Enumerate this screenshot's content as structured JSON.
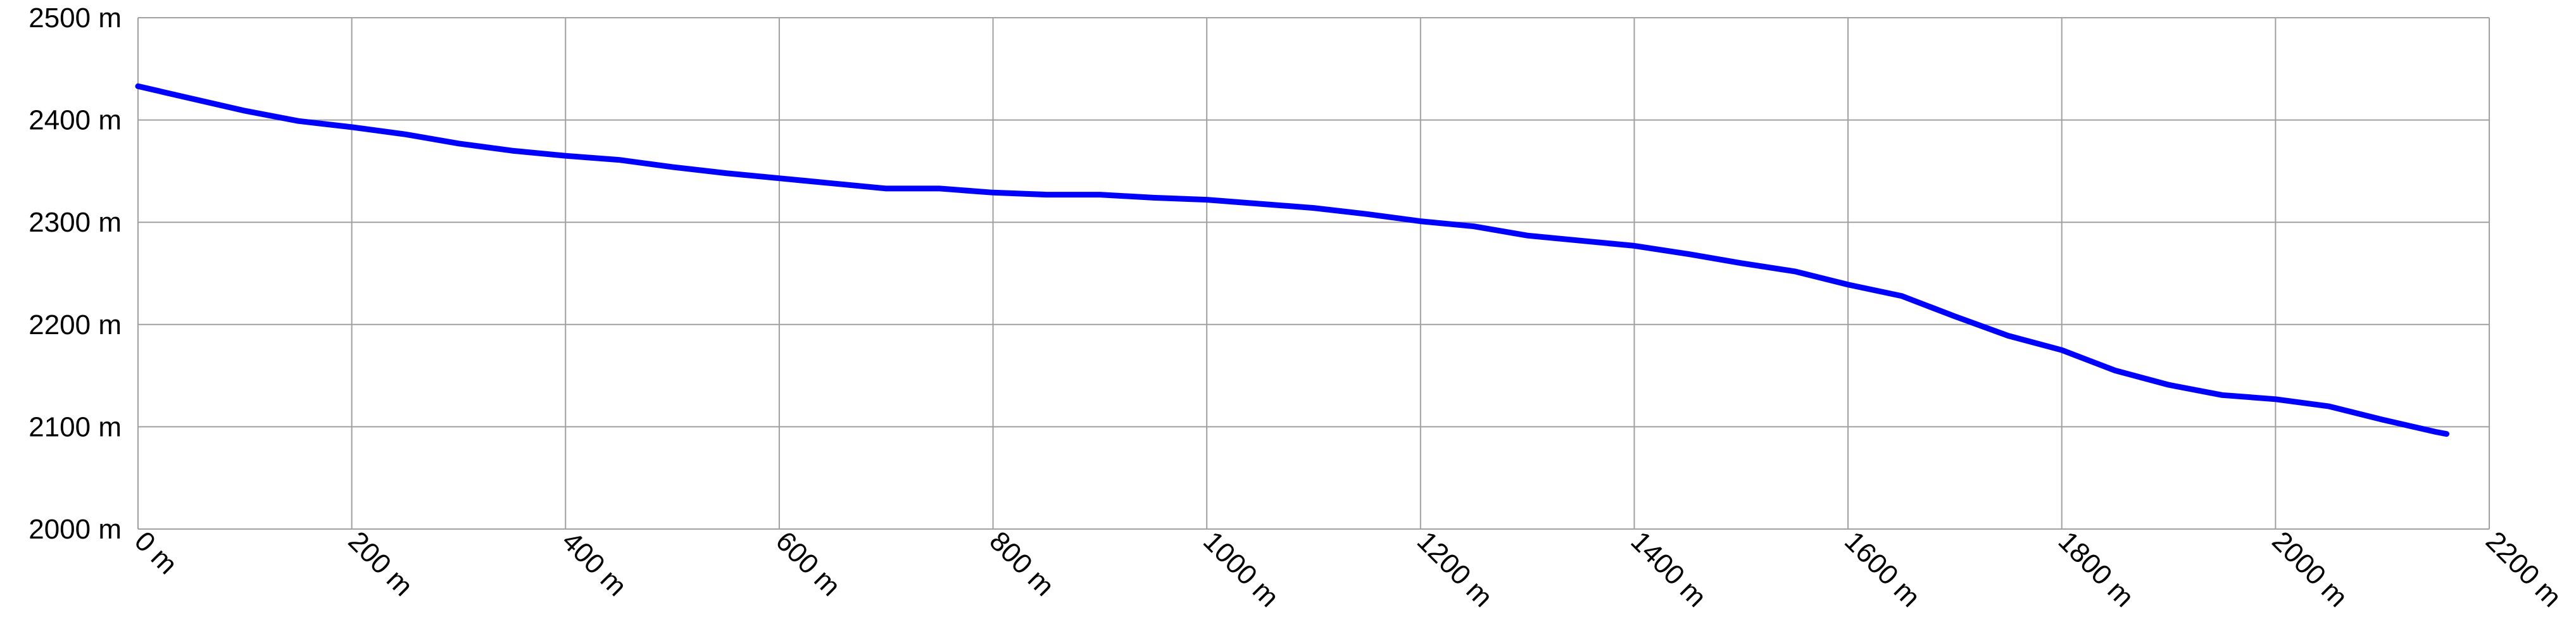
{
  "chart_data": {
    "type": "line",
    "x": [
      0,
      50,
      100,
      150,
      200,
      250,
      300,
      350,
      400,
      450,
      500,
      550,
      600,
      650,
      700,
      750,
      800,
      850,
      900,
      950,
      1000,
      1050,
      1100,
      1150,
      1200,
      1250,
      1300,
      1350,
      1400,
      1450,
      1500,
      1550,
      1600,
      1650,
      1700,
      1750,
      1800,
      1850,
      1900,
      1950,
      2000,
      2050,
      2100,
      2150,
      2160
    ],
    "series": [
      {
        "color": "#0000ff",
        "values": [
          2433,
          2421,
          2409,
          2399,
          2393,
          2386,
          2377,
          2370,
          2365,
          2361,
          2354,
          2348,
          2343,
          2338,
          2333,
          2333,
          2329,
          2327,
          2327,
          2324,
          2322,
          2318,
          2314,
          2308,
          2301,
          2296,
          2287,
          2282,
          2277,
          2269,
          2260,
          2252,
          2239,
          2228,
          2208,
          2189,
          2175,
          2155,
          2141,
          2131,
          2127,
          2120,
          2107,
          2095,
          2093
        ]
      }
    ],
    "xlim": [
      0,
      2200
    ],
    "xticks": [
      {
        "value": 0,
        "label": "0 m"
      },
      {
        "value": 200,
        "label": "200 m"
      },
      {
        "value": 400,
        "label": "400 m"
      },
      {
        "value": 600,
        "label": "600 m"
      },
      {
        "value": 800,
        "label": "800 m"
      },
      {
        "value": 1000,
        "label": "1000 m"
      },
      {
        "value": 1200,
        "label": "1200 m"
      },
      {
        "value": 1400,
        "label": "1400 m"
      },
      {
        "value": 1600,
        "label": "1600 m"
      },
      {
        "value": 1800,
        "label": "1800 m"
      },
      {
        "value": 2000,
        "label": "2000 m"
      },
      {
        "value": 2200,
        "label": "2200 m"
      }
    ],
    "ylim": [
      2000,
      2500
    ],
    "yticks": [
      {
        "value": 2000,
        "label": "2000 m"
      },
      {
        "value": 2100,
        "label": "2100 m"
      },
      {
        "value": 2200,
        "label": "2200 m"
      },
      {
        "value": 2300,
        "label": "2300 m"
      },
      {
        "value": 2400,
        "label": "2400 m"
      },
      {
        "value": 2500,
        "label": "2500 m"
      }
    ],
    "grid": true
  }
}
